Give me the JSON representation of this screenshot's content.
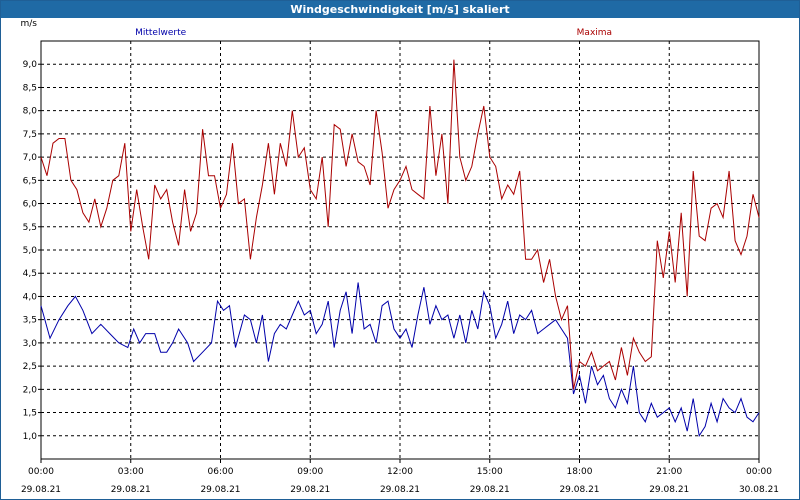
{
  "window": {
    "title": "Windgeschwindigkeit [m/s] skaliert"
  },
  "chart_data": {
    "type": "line",
    "ylabel": "m/s",
    "ylim": [
      0.5,
      9.5
    ],
    "y_ticks": [
      "1,0",
      "1,5",
      "2,0",
      "2,5",
      "3,0",
      "3,5",
      "4,0",
      "4,5",
      "5,0",
      "5,5",
      "6,0",
      "6,5",
      "7,0",
      "7,5",
      "8,0",
      "8,5",
      "9,0"
    ],
    "x_ticks": [
      {
        "time": "00:00",
        "date": "29.08.21"
      },
      {
        "time": "03:00",
        "date": "29.08.21"
      },
      {
        "time": "06:00",
        "date": "29.08.21"
      },
      {
        "time": "09:00",
        "date": "29.08.21"
      },
      {
        "time": "12:00",
        "date": "29.08.21"
      },
      {
        "time": "15:00",
        "date": "29.08.21"
      },
      {
        "time": "18:00",
        "date": "29.08.21"
      },
      {
        "time": "21:00",
        "date": "29.08.21"
      },
      {
        "time": "00:00",
        "date": "30.08.21"
      }
    ],
    "x_range_hours": [
      0,
      24
    ],
    "grid": true,
    "series": [
      {
        "name": "Mittelwerte",
        "color": "#0000aa",
        "points": [
          [
            0,
            3.8
          ],
          [
            0.3,
            3.1
          ],
          [
            0.6,
            3.5
          ],
          [
            0.9,
            3.8
          ],
          [
            1.15,
            4.0
          ],
          [
            1.4,
            3.7
          ],
          [
            1.7,
            3.2
          ],
          [
            2.0,
            3.4
          ],
          [
            2.3,
            3.2
          ],
          [
            2.6,
            3.0
          ],
          [
            2.9,
            2.9
          ],
          [
            3.1,
            3.3
          ],
          [
            3.3,
            3.0
          ],
          [
            3.5,
            3.2
          ],
          [
            3.8,
            3.2
          ],
          [
            4.0,
            2.8
          ],
          [
            4.2,
            2.8
          ],
          [
            4.4,
            3.0
          ],
          [
            4.6,
            3.3
          ],
          [
            4.9,
            3.0
          ],
          [
            5.1,
            2.6
          ],
          [
            5.4,
            2.8
          ],
          [
            5.7,
            3.0
          ],
          [
            5.9,
            3.9
          ],
          [
            6.1,
            3.7
          ],
          [
            6.3,
            3.8
          ],
          [
            6.5,
            2.9
          ],
          [
            6.8,
            3.6
          ],
          [
            7.0,
            3.5
          ],
          [
            7.2,
            3.0
          ],
          [
            7.4,
            3.6
          ],
          [
            7.6,
            2.6
          ],
          [
            7.8,
            3.2
          ],
          [
            8.0,
            3.4
          ],
          [
            8.2,
            3.3
          ],
          [
            8.4,
            3.6
          ],
          [
            8.6,
            3.9
          ],
          [
            8.8,
            3.6
          ],
          [
            9.0,
            3.7
          ],
          [
            9.2,
            3.2
          ],
          [
            9.4,
            3.4
          ],
          [
            9.6,
            3.9
          ],
          [
            9.8,
            2.9
          ],
          [
            10.0,
            3.7
          ],
          [
            10.2,
            4.1
          ],
          [
            10.4,
            3.2
          ],
          [
            10.6,
            4.3
          ],
          [
            10.8,
            3.3
          ],
          [
            11.0,
            3.4
          ],
          [
            11.2,
            3.0
          ],
          [
            11.4,
            3.8
          ],
          [
            11.6,
            3.9
          ],
          [
            11.8,
            3.3
          ],
          [
            12.0,
            3.1
          ],
          [
            12.2,
            3.3
          ],
          [
            12.4,
            2.9
          ],
          [
            12.6,
            3.6
          ],
          [
            12.8,
            4.2
          ],
          [
            13.0,
            3.4
          ],
          [
            13.2,
            3.8
          ],
          [
            13.4,
            3.5
          ],
          [
            13.6,
            3.6
          ],
          [
            13.8,
            3.1
          ],
          [
            14.0,
            3.6
          ],
          [
            14.2,
            3.0
          ],
          [
            14.4,
            3.7
          ],
          [
            14.6,
            3.3
          ],
          [
            14.8,
            4.1
          ],
          [
            15.0,
            3.8
          ],
          [
            15.2,
            3.1
          ],
          [
            15.4,
            3.4
          ],
          [
            15.6,
            3.9
          ],
          [
            15.8,
            3.2
          ],
          [
            16.0,
            3.6
          ],
          [
            16.2,
            3.5
          ],
          [
            16.4,
            3.7
          ],
          [
            16.6,
            3.2
          ],
          [
            16.8,
            3.3
          ],
          [
            17.0,
            3.4
          ],
          [
            17.2,
            3.5
          ],
          [
            17.4,
            3.3
          ],
          [
            17.6,
            3.1
          ],
          [
            17.8,
            1.9
          ],
          [
            18.0,
            2.3
          ],
          [
            18.2,
            1.7
          ],
          [
            18.4,
            2.5
          ],
          [
            18.6,
            2.1
          ],
          [
            18.8,
            2.3
          ],
          [
            19.0,
            1.8
          ],
          [
            19.2,
            1.6
          ],
          [
            19.4,
            2.0
          ],
          [
            19.6,
            1.7
          ],
          [
            19.8,
            2.5
          ],
          [
            20.0,
            1.5
          ],
          [
            20.2,
            1.3
          ],
          [
            20.4,
            1.7
          ],
          [
            20.6,
            1.4
          ],
          [
            20.8,
            1.5
          ],
          [
            21.0,
            1.6
          ],
          [
            21.2,
            1.3
          ],
          [
            21.4,
            1.6
          ],
          [
            21.6,
            1.1
          ],
          [
            21.8,
            1.8
          ],
          [
            22.0,
            1.0
          ],
          [
            22.2,
            1.2
          ],
          [
            22.4,
            1.7
          ],
          [
            22.6,
            1.3
          ],
          [
            22.8,
            1.8
          ],
          [
            23.0,
            1.6
          ],
          [
            23.2,
            1.5
          ],
          [
            23.4,
            1.8
          ],
          [
            23.6,
            1.4
          ],
          [
            23.8,
            1.3
          ],
          [
            24.0,
            1.5
          ]
        ]
      },
      {
        "name": "Maxima",
        "color": "#aa0000",
        "points": [
          [
            0,
            7.0
          ],
          [
            0.2,
            6.6
          ],
          [
            0.4,
            7.3
          ],
          [
            0.6,
            7.4
          ],
          [
            0.8,
            7.4
          ],
          [
            1.0,
            6.5
          ],
          [
            1.2,
            6.3
          ],
          [
            1.4,
            5.8
          ],
          [
            1.6,
            5.6
          ],
          [
            1.8,
            6.1
          ],
          [
            2.0,
            5.5
          ],
          [
            2.2,
            5.9
          ],
          [
            2.4,
            6.5
          ],
          [
            2.6,
            6.6
          ],
          [
            2.8,
            7.3
          ],
          [
            3.0,
            5.4
          ],
          [
            3.2,
            6.3
          ],
          [
            3.4,
            5.5
          ],
          [
            3.6,
            4.8
          ],
          [
            3.8,
            6.4
          ],
          [
            4.0,
            6.1
          ],
          [
            4.2,
            6.3
          ],
          [
            4.4,
            5.6
          ],
          [
            4.6,
            5.1
          ],
          [
            4.8,
            6.3
          ],
          [
            5.0,
            5.4
          ],
          [
            5.2,
            5.8
          ],
          [
            5.4,
            7.6
          ],
          [
            5.6,
            6.6
          ],
          [
            5.8,
            6.6
          ],
          [
            6.0,
            5.9
          ],
          [
            6.2,
            6.2
          ],
          [
            6.4,
            7.3
          ],
          [
            6.6,
            6.0
          ],
          [
            6.8,
            6.1
          ],
          [
            7.0,
            4.8
          ],
          [
            7.2,
            5.7
          ],
          [
            7.4,
            6.4
          ],
          [
            7.6,
            7.3
          ],
          [
            7.8,
            6.2
          ],
          [
            8.0,
            7.3
          ],
          [
            8.2,
            6.8
          ],
          [
            8.4,
            8.0
          ],
          [
            8.6,
            7.0
          ],
          [
            8.8,
            7.2
          ],
          [
            9.0,
            6.3
          ],
          [
            9.2,
            6.1
          ],
          [
            9.4,
            7.0
          ],
          [
            9.6,
            5.5
          ],
          [
            9.8,
            7.7
          ],
          [
            10.0,
            7.6
          ],
          [
            10.2,
            6.8
          ],
          [
            10.4,
            7.5
          ],
          [
            10.6,
            6.9
          ],
          [
            10.8,
            6.8
          ],
          [
            11.0,
            6.4
          ],
          [
            11.2,
            8.0
          ],
          [
            11.4,
            7.1
          ],
          [
            11.6,
            5.9
          ],
          [
            11.8,
            6.3
          ],
          [
            12.0,
            6.5
          ],
          [
            12.2,
            6.8
          ],
          [
            12.4,
            6.3
          ],
          [
            12.6,
            6.2
          ],
          [
            12.8,
            6.1
          ],
          [
            13.0,
            8.1
          ],
          [
            13.2,
            6.6
          ],
          [
            13.4,
            7.5
          ],
          [
            13.6,
            6.0
          ],
          [
            13.8,
            9.1
          ],
          [
            14.0,
            7.0
          ],
          [
            14.2,
            6.5
          ],
          [
            14.4,
            6.8
          ],
          [
            14.6,
            7.5
          ],
          [
            14.8,
            8.1
          ],
          [
            15.0,
            7.0
          ],
          [
            15.2,
            6.8
          ],
          [
            15.4,
            6.1
          ],
          [
            15.6,
            6.4
          ],
          [
            15.8,
            6.2
          ],
          [
            16.0,
            6.7
          ],
          [
            16.2,
            4.8
          ],
          [
            16.4,
            4.8
          ],
          [
            16.6,
            5.0
          ],
          [
            16.8,
            4.3
          ],
          [
            17.0,
            4.8
          ],
          [
            17.2,
            4.0
          ],
          [
            17.4,
            3.5
          ],
          [
            17.6,
            3.8
          ],
          [
            17.8,
            2.0
          ],
          [
            18.0,
            2.6
          ],
          [
            18.2,
            2.5
          ],
          [
            18.4,
            2.8
          ],
          [
            18.6,
            2.4
          ],
          [
            18.8,
            2.5
          ],
          [
            19.0,
            2.6
          ],
          [
            19.2,
            2.2
          ],
          [
            19.4,
            2.9
          ],
          [
            19.6,
            2.3
          ],
          [
            19.8,
            3.1
          ],
          [
            20.0,
            2.8
          ],
          [
            20.2,
            2.6
          ],
          [
            20.4,
            2.7
          ],
          [
            20.6,
            5.2
          ],
          [
            20.8,
            4.4
          ],
          [
            21.0,
            5.4
          ],
          [
            21.2,
            4.3
          ],
          [
            21.4,
            5.8
          ],
          [
            21.6,
            4.0
          ],
          [
            21.8,
            6.7
          ],
          [
            22.0,
            5.3
          ],
          [
            22.2,
            5.2
          ],
          [
            22.4,
            5.9
          ],
          [
            22.6,
            6.0
          ],
          [
            22.8,
            5.7
          ],
          [
            23.0,
            6.7
          ],
          [
            23.2,
            5.2
          ],
          [
            23.4,
            4.9
          ],
          [
            23.6,
            5.3
          ],
          [
            23.8,
            6.2
          ],
          [
            24.0,
            5.7
          ]
        ]
      }
    ]
  }
}
